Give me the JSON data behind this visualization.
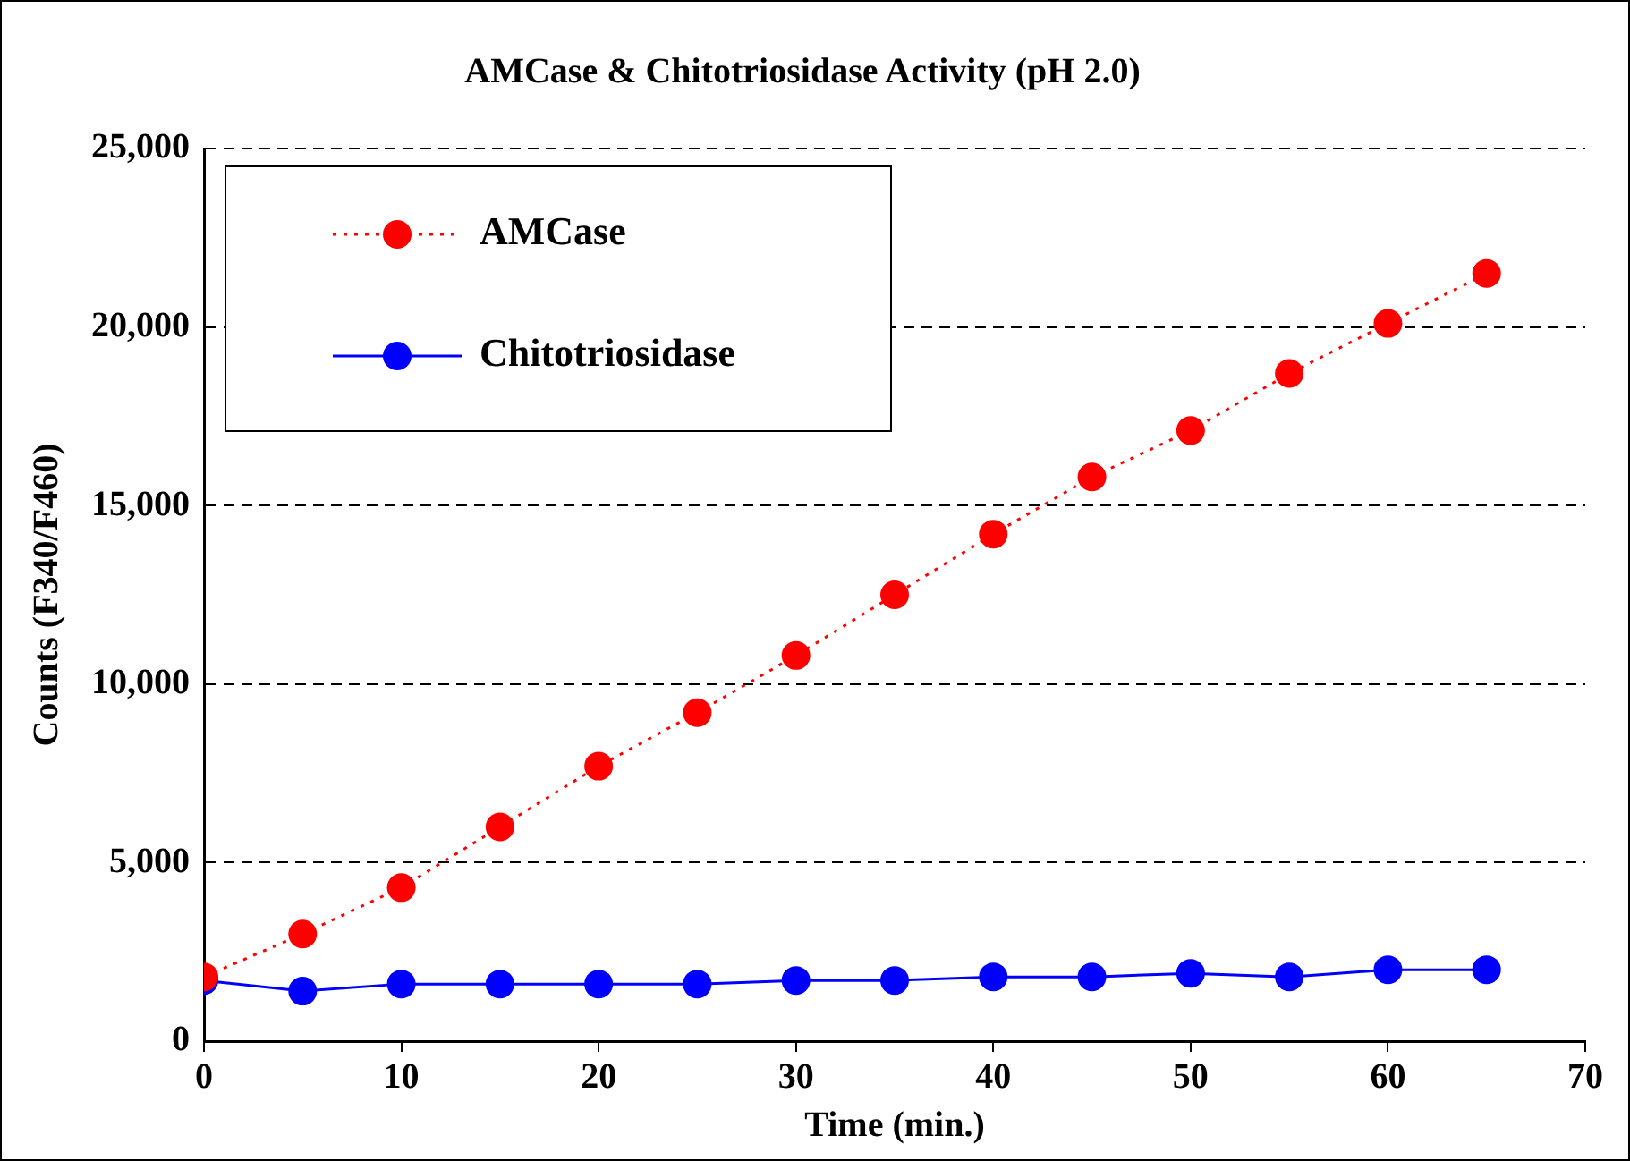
{
  "chart_data": {
    "type": "line",
    "title": "AMCase & Chitotriosidase Activity (pH 2.0)",
    "xlabel": "Time (min.)",
    "ylabel": "Counts (F340/F460)",
    "x": [
      0,
      5,
      10,
      15,
      20,
      25,
      30,
      35,
      40,
      45,
      50,
      55,
      60,
      65
    ],
    "series": [
      {
        "name": "AMCase",
        "color": "#ff0000",
        "line_style": "dotted",
        "values": [
          1800,
          3000,
          4300,
          6000,
          7700,
          9200,
          10800,
          12500,
          14200,
          15800,
          17100,
          18700,
          20100,
          21500
        ]
      },
      {
        "name": "Chitotriosidase",
        "color": "#0000ff",
        "line_style": "solid",
        "values": [
          1700,
          1400,
          1600,
          1600,
          1600,
          1600,
          1700,
          1700,
          1800,
          1800,
          1900,
          1800,
          2000,
          2000
        ]
      }
    ],
    "xlim": [
      0,
      70
    ],
    "xticks": [
      0,
      10,
      20,
      30,
      40,
      50,
      60,
      70
    ],
    "ylim": [
      0,
      25000
    ],
    "yticks": [
      {
        "value": 0,
        "label": "0"
      },
      {
        "value": 5000,
        "label": "5,000"
      },
      {
        "value": 10000,
        "label": "10,000"
      },
      {
        "value": 15000,
        "label": "15,000"
      },
      {
        "value": 20000,
        "label": "20,000"
      },
      {
        "value": 25000,
        "label": "25,000"
      }
    ],
    "grid": "y",
    "legend": "top left",
    "marker": "circle"
  }
}
